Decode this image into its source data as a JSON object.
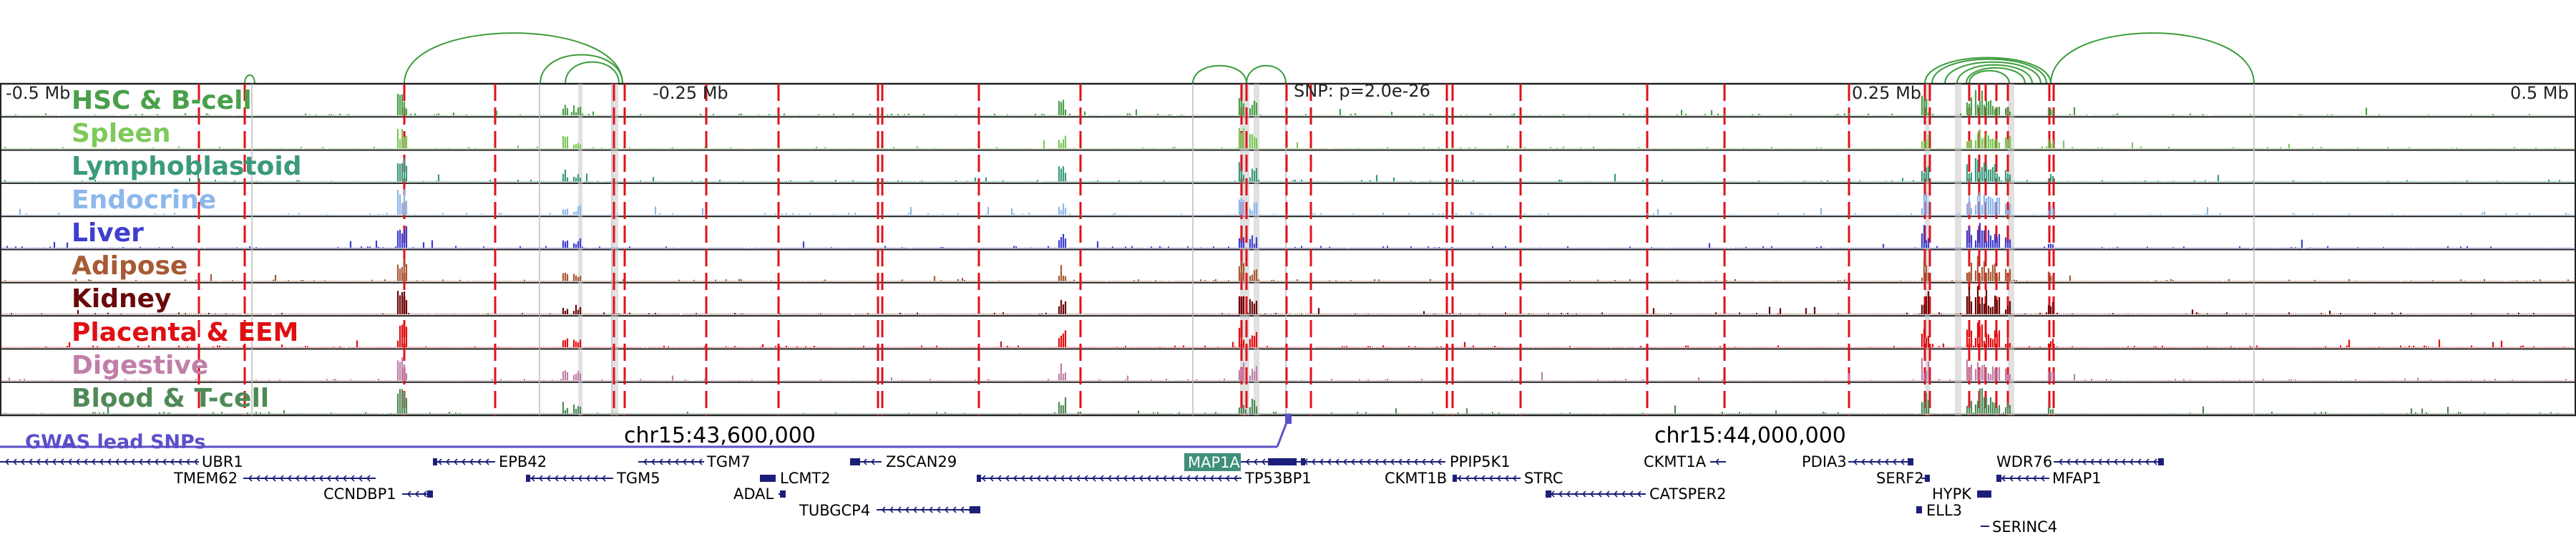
{
  "colors": {
    "hic_arcs": "#3b9c3b",
    "eqtl_lines": "#e0101a",
    "snp_band": "#c8c8c8",
    "gwas": "#5b4fc9",
    "gene": "#1b1f7a",
    "map1a_box": "#3f8f7a"
  },
  "axis": {
    "left_label": "-0.5 Mb",
    "center_left_label": "-0.25 Mb",
    "snp_label": "SNP: p=2.0e-26",
    "center_right_label": "0.25 Mb",
    "right_label": "0.5 Mb"
  },
  "tracks": [
    {
      "name": "HSC & B-cell",
      "color": "#4aa04a"
    },
    {
      "name": "Spleen",
      "color": "#7dc95a"
    },
    {
      "name": "Lymphoblastoid",
      "color": "#3a9a7c"
    },
    {
      "name": "Endocrine",
      "color": "#8cb8ec"
    },
    {
      "name": "Liver",
      "color": "#3e3ed0"
    },
    {
      "name": "Adipose",
      "color": "#a75a34"
    },
    {
      "name": "Kidney",
      "color": "#6a0a0a"
    },
    {
      "name": "Placenta & EEM",
      "color": "#e00f12"
    },
    {
      "name": "Digestive",
      "color": "#c07fa8"
    },
    {
      "name": "Blood & T-cell",
      "color": "#4f8a56"
    }
  ],
  "gwas": {
    "label": "GWAS lead SNPs"
  },
  "coordinates": {
    "left": "chr15:43,600,000",
    "right": "chr15:44,000,000"
  },
  "genes": [
    {
      "name": "UBR1",
      "highlight": false
    },
    {
      "name": "TMEM62",
      "highlight": false
    },
    {
      "name": "CCNDBP1",
      "highlight": false
    },
    {
      "name": "EPB42",
      "highlight": false
    },
    {
      "name": "TGM5",
      "highlight": false
    },
    {
      "name": "TGM7",
      "highlight": false
    },
    {
      "name": "LCMT2",
      "highlight": false
    },
    {
      "name": "ADAL",
      "highlight": false
    },
    {
      "name": "ZSCAN29",
      "highlight": false
    },
    {
      "name": "TUBGCP4",
      "highlight": false
    },
    {
      "name": "MAP1A",
      "highlight": true
    },
    {
      "name": "TP53BP1",
      "highlight": false
    },
    {
      "name": "PPIP5K1",
      "highlight": false
    },
    {
      "name": "CKMT1B",
      "highlight": false
    },
    {
      "name": "STRC",
      "highlight": false
    },
    {
      "name": "CKMT1A",
      "highlight": false
    },
    {
      "name": "CATSPER2",
      "highlight": false
    },
    {
      "name": "PDIA3",
      "highlight": false
    },
    {
      "name": "SERF2",
      "highlight": false
    },
    {
      "name": "HYPK",
      "highlight": false
    },
    {
      "name": "ELL3",
      "highlight": false
    },
    {
      "name": "SERINC4",
      "highlight": false
    },
    {
      "name": "WDR76",
      "highlight": false
    },
    {
      "name": "MFAP1",
      "highlight": false
    }
  ]
}
